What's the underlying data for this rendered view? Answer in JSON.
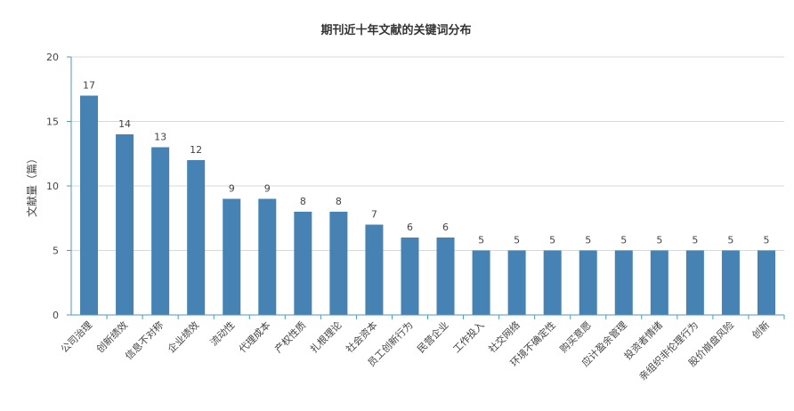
{
  "chart_data": {
    "type": "bar",
    "title": "期刊近十年文献的关键词分布",
    "xlabel": "",
    "ylabel": "文献量（篇）",
    "ylim": [
      0,
      20
    ],
    "yticks": [
      0,
      5,
      10,
      15,
      20
    ],
    "grid": true,
    "legend": "none",
    "colors": {
      "bar": "#4682b4",
      "axis": "#4f9cb0",
      "grid": "#d9d9d9",
      "text": "#444444",
      "title": "#333333"
    },
    "categories": [
      "公司治理",
      "创新绩效",
      "信息不对称",
      "企业绩效",
      "流动性",
      "代理成本",
      "产权性质",
      "扎根理论",
      "社会资本",
      "员工创新行为",
      "民营企业",
      "工作投入",
      "社交网络",
      "环境不确定性",
      "购买意愿",
      "应计盈余管理",
      "投资者情绪",
      "亲组织非伦理行为",
      "股价崩盘风险",
      "创新"
    ],
    "values": [
      17,
      14,
      13,
      12,
      9,
      9,
      8,
      8,
      7,
      6,
      6,
      5,
      5,
      5,
      5,
      5,
      5,
      5,
      5,
      5
    ]
  }
}
